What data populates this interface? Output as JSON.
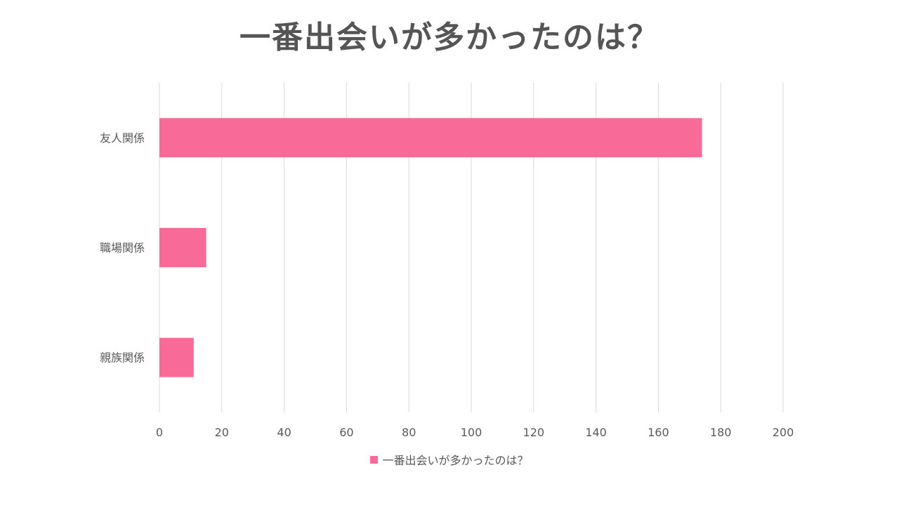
{
  "colors": {
    "bar": "#F86A97",
    "grid": "#D9D9D9",
    "text": "#595959",
    "title": "#555555"
  },
  "chart_data": {
    "type": "bar",
    "orientation": "horizontal",
    "title": "一番出会いが多かったのは？",
    "categories": [
      "友人関係",
      "職場関係",
      "親族関係"
    ],
    "series": [
      {
        "name": "一番出会いが多かったのは？",
        "values": [
          174,
          15,
          11
        ]
      }
    ],
    "xlim": [
      0,
      200
    ],
    "xticks": [
      "0",
      "20",
      "40",
      "60",
      "80",
      "100",
      "120",
      "140",
      "160",
      "180",
      "200"
    ],
    "grid": true,
    "legend": "bottom"
  }
}
